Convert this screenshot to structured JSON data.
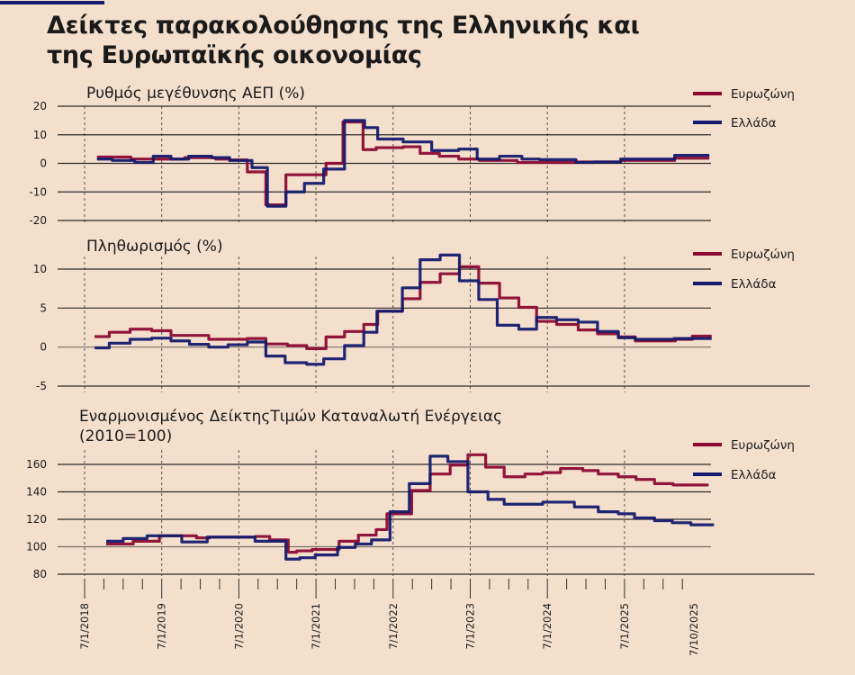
{
  "title_line1": "Δείκτες παρακολούθησης της  Ελληνικής και",
  "title_line2": "της Ευρωπαϊκής οικονομίας",
  "colors": {
    "eurozone": "#8b0a32",
    "greece": "#141a6e",
    "background": "#f4dfcc"
  },
  "chart_data": [
    {
      "type": "line",
      "title": "Ρυθμός μεγέθυνσης ΑΕΠ (%)",
      "ylim": [
        -20,
        20
      ],
      "yticks": [
        "20",
        "10",
        "0",
        "-10",
        "-20"
      ],
      "ytick_values": [
        20,
        10,
        0,
        -10,
        -20
      ],
      "legend": "top-right",
      "series": [
        {
          "name": "Ευρωζώνη",
          "color": "#8b0a32",
          "points": [
            [
              2018.16,
              2.2
            ],
            [
              2018.6,
              1.5
            ],
            [
              2019.3,
              2.0
            ],
            [
              2019.7,
              1.5
            ],
            [
              2019.88,
              1.2
            ],
            [
              2020.11,
              -3
            ],
            [
              2020.35,
              -14.5
            ],
            [
              2020.61,
              -4
            ],
            [
              2021.13,
              0
            ],
            [
              2021.35,
              14.5
            ],
            [
              2021.61,
              4.8
            ],
            [
              2021.78,
              5.5
            ],
            [
              2022.13,
              5.8
            ],
            [
              2022.35,
              3.5
            ],
            [
              2022.6,
              2.5
            ],
            [
              2022.85,
              1.5
            ],
            [
              2023.12,
              1.0
            ],
            [
              2023.61,
              0.3
            ],
            [
              2024.37,
              0.5
            ],
            [
              2024.95,
              1.0
            ],
            [
              2025.65,
              1.8
            ],
            [
              2026.1,
              1.8
            ]
          ]
        },
        {
          "name": "Ελλάδα",
          "color": "#141a6e",
          "points": [
            [
              2018.16,
              1.5
            ],
            [
              2018.36,
              1.0
            ],
            [
              2018.65,
              0.3
            ],
            [
              2018.89,
              2.5
            ],
            [
              2019.12,
              1.5
            ],
            [
              2019.35,
              2.5
            ],
            [
              2019.65,
              2.0
            ],
            [
              2019.88,
              1.0
            ],
            [
              2020.17,
              -1.5
            ],
            [
              2020.37,
              -15
            ],
            [
              2020.61,
              -10
            ],
            [
              2020.85,
              -7
            ],
            [
              2021.1,
              -2
            ],
            [
              2021.37,
              15
            ],
            [
              2021.63,
              12.5
            ],
            [
              2021.8,
              8.5
            ],
            [
              2022.13,
              7.5
            ],
            [
              2022.5,
              4.5
            ],
            [
              2022.85,
              5
            ],
            [
              2023.09,
              1.5
            ],
            [
              2023.38,
              2.5
            ],
            [
              2023.67,
              1.5
            ],
            [
              2023.9,
              1.3
            ],
            [
              2024.37,
              0.3
            ],
            [
              2024.6,
              0.5
            ],
            [
              2024.95,
              1.5
            ],
            [
              2025.65,
              2.8
            ],
            [
              2026.1,
              2.8
            ]
          ]
        }
      ]
    },
    {
      "type": "line",
      "title": "Πληθωρισμός (%)",
      "ylim": [
        -5,
        10
      ],
      "yticks": [
        "10",
        "5",
        "0",
        "-5"
      ],
      "ytick_values": [
        10,
        5,
        0,
        -5
      ],
      "legend": "top-right",
      "series": [
        {
          "name": "Ευρωζώνη",
          "color": "#8b0a32",
          "points": [
            [
              2018.13,
              1.35
            ],
            [
              2018.32,
              1.9
            ],
            [
              2018.59,
              2.3
            ],
            [
              2018.87,
              2.1
            ],
            [
              2019.12,
              1.5
            ],
            [
              2019.61,
              1.0
            ],
            [
              2020.11,
              1.1
            ],
            [
              2020.35,
              0.4
            ],
            [
              2020.63,
              0.2
            ],
            [
              2020.88,
              -0.2
            ],
            [
              2021.13,
              1.3
            ],
            [
              2021.37,
              2.0
            ],
            [
              2021.62,
              2.9
            ],
            [
              2021.8,
              4.6
            ],
            [
              2022.12,
              6.2
            ],
            [
              2022.35,
              8.3
            ],
            [
              2022.61,
              9.4
            ],
            [
              2022.86,
              10.3
            ],
            [
              2023.11,
              8.2
            ],
            [
              2023.38,
              6.3
            ],
            [
              2023.63,
              5.1
            ],
            [
              2023.86,
              3.3
            ],
            [
              2024.12,
              2.9
            ],
            [
              2024.4,
              2.2
            ],
            [
              2024.65,
              1.7
            ],
            [
              2024.92,
              1.3
            ],
            [
              2025.14,
              0.8
            ],
            [
              2025.66,
              1.0
            ],
            [
              2025.88,
              1.4
            ],
            [
              2026.13,
              1.4
            ]
          ]
        },
        {
          "name": "Ελλάδα",
          "color": "#141a6e",
          "points": [
            [
              2018.13,
              -0.1
            ],
            [
              2018.32,
              0.5
            ],
            [
              2018.59,
              1.0
            ],
            [
              2018.87,
              1.15
            ],
            [
              2019.12,
              0.8
            ],
            [
              2019.36,
              0.35
            ],
            [
              2019.61,
              0
            ],
            [
              2019.86,
              0.3
            ],
            [
              2020.11,
              0.65
            ],
            [
              2020.35,
              -1.15
            ],
            [
              2020.6,
              -2.0
            ],
            [
              2020.88,
              -2.2
            ],
            [
              2021.1,
              -1.5
            ],
            [
              2021.37,
              0.2
            ],
            [
              2021.62,
              1.9
            ],
            [
              2021.79,
              4.6
            ],
            [
              2022.12,
              7.6
            ],
            [
              2022.35,
              11.2
            ],
            [
              2022.61,
              11.8
            ],
            [
              2022.86,
              8.5
            ],
            [
              2023.11,
              6.1
            ],
            [
              2023.35,
              2.8
            ],
            [
              2023.63,
              2.3
            ],
            [
              2023.86,
              3.8
            ],
            [
              2024.12,
              3.5
            ],
            [
              2024.4,
              3.2
            ],
            [
              2024.65,
              2.0
            ],
            [
              2024.92,
              1.2
            ],
            [
              2025.14,
              1.0
            ],
            [
              2025.64,
              1.1
            ],
            [
              2026.13,
              1.1
            ]
          ]
        }
      ]
    },
    {
      "type": "line",
      "title": "Εναρμονισμένος ΔείκτηςΤιμών Καταναλωτή Ενέργειας",
      "title2": "(2010=100)",
      "ylim": [
        80,
        160
      ],
      "yticks": [
        "160",
        "140",
        "120",
        "100",
        "80"
      ],
      "ytick_values": [
        160,
        140,
        120,
        100,
        80
      ],
      "legend": "top-right",
      "xticks": [
        "7/1/2018",
        "7/1/2019",
        "7/1/2020",
        "7/1/2021",
        "7/1/2022",
        "7/1/2023",
        "7/1/2024",
        "7/1/2025",
        "7/10/2025"
      ],
      "xtick_values": [
        2018,
        2019,
        2020,
        2021,
        2022,
        2023,
        2024,
        2025,
        2025.9
      ],
      "series": [
        {
          "name": "Ευρωζώνη",
          "color": "#8b0a32",
          "points": [
            [
              2018.28,
              102
            ],
            [
              2018.63,
              104
            ],
            [
              2018.97,
              108
            ],
            [
              2019.45,
              106.5
            ],
            [
              2019.62,
              107
            ],
            [
              2020.21,
              107.5
            ],
            [
              2020.4,
              105
            ],
            [
              2020.64,
              96
            ],
            [
              2020.75,
              97
            ],
            [
              2020.95,
              98
            ],
            [
              2021.3,
              104
            ],
            [
              2021.55,
              108.5
            ],
            [
              2021.78,
              112.5
            ],
            [
              2021.92,
              124
            ],
            [
              2022.24,
              141
            ],
            [
              2022.48,
              153
            ],
            [
              2022.74,
              159.5
            ],
            [
              2022.97,
              167
            ],
            [
              2023.2,
              158
            ],
            [
              2023.44,
              151
            ],
            [
              2023.71,
              153
            ],
            [
              2023.94,
              154
            ],
            [
              2024.17,
              157
            ],
            [
              2024.46,
              155.5
            ],
            [
              2024.66,
              153
            ],
            [
              2024.92,
              151
            ],
            [
              2025.15,
              149
            ],
            [
              2025.39,
              146
            ],
            [
              2025.63,
              145
            ],
            [
              2026.09,
              145
            ]
          ]
        },
        {
          "name": "Ελλάδα",
          "color": "#141a6e",
          "points": [
            [
              2018.28,
              104
            ],
            [
              2018.5,
              106
            ],
            [
              2018.81,
              108
            ],
            [
              2019.26,
              103.5
            ],
            [
              2019.59,
              107
            ],
            [
              2020.21,
              104
            ],
            [
              2020.61,
              91
            ],
            [
              2020.79,
              92
            ],
            [
              2020.99,
              94
            ],
            [
              2021.28,
              99.5
            ],
            [
              2021.51,
              102
            ],
            [
              2021.72,
              105
            ],
            [
              2021.96,
              125.5
            ],
            [
              2022.21,
              146
            ],
            [
              2022.48,
              166
            ],
            [
              2022.71,
              162
            ],
            [
              2022.97,
              140
            ],
            [
              2023.23,
              134.5
            ],
            [
              2023.44,
              131
            ],
            [
              2023.94,
              132.5
            ],
            [
              2024.35,
              129
            ],
            [
              2024.66,
              125.5
            ],
            [
              2024.92,
              124
            ],
            [
              2025.13,
              121
            ],
            [
              2025.39,
              119
            ],
            [
              2025.62,
              117.5
            ],
            [
              2025.86,
              116
            ],
            [
              2026.16,
              116
            ]
          ]
        }
      ]
    }
  ]
}
